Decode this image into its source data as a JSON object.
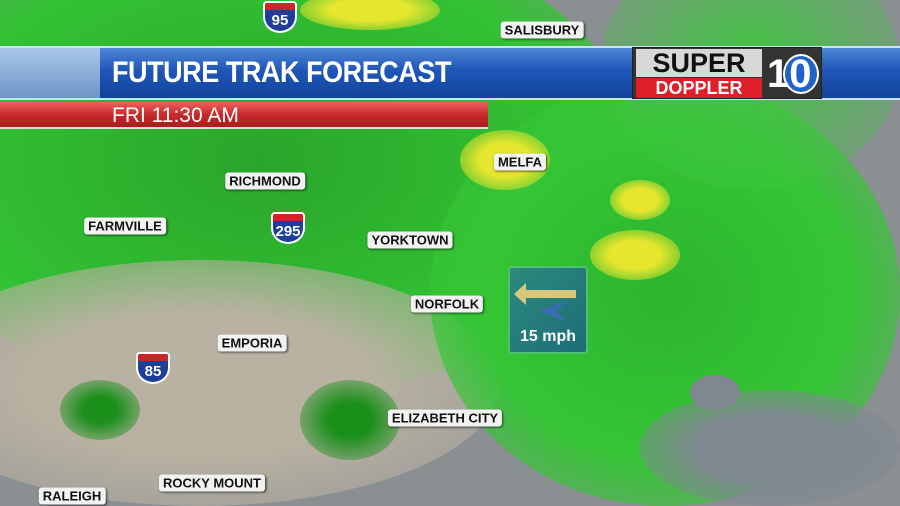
{
  "header": {
    "title": "FUTURE TRAK FORECAST",
    "time": "FRI 11:30 AM"
  },
  "logo": {
    "line1": "SUPER",
    "line2": "DOPPLER",
    "channel": "10"
  },
  "wind": {
    "speed": "15 mph",
    "direction": "west",
    "icon": "arrow-left-icon"
  },
  "cities": [
    "SALISBURY",
    "MELFA",
    "RICHMOND",
    "FARMVILLE",
    "YORKTOWN",
    "NORFOLK",
    "EMPORIA",
    "ELIZABETH CITY",
    "ROCKY MOUNT",
    "RALEIGH"
  ],
  "interstates": [
    "95",
    "295",
    "85"
  ],
  "colors": {
    "rain_light": "#33c233",
    "rain_heavy": "#1a8f1a",
    "rain_yellow": "#e6e62e",
    "land": "#b9b2a2",
    "water": "#868c92",
    "banner_blue": "#1f56b8",
    "banner_red": "#c72a2a"
  }
}
